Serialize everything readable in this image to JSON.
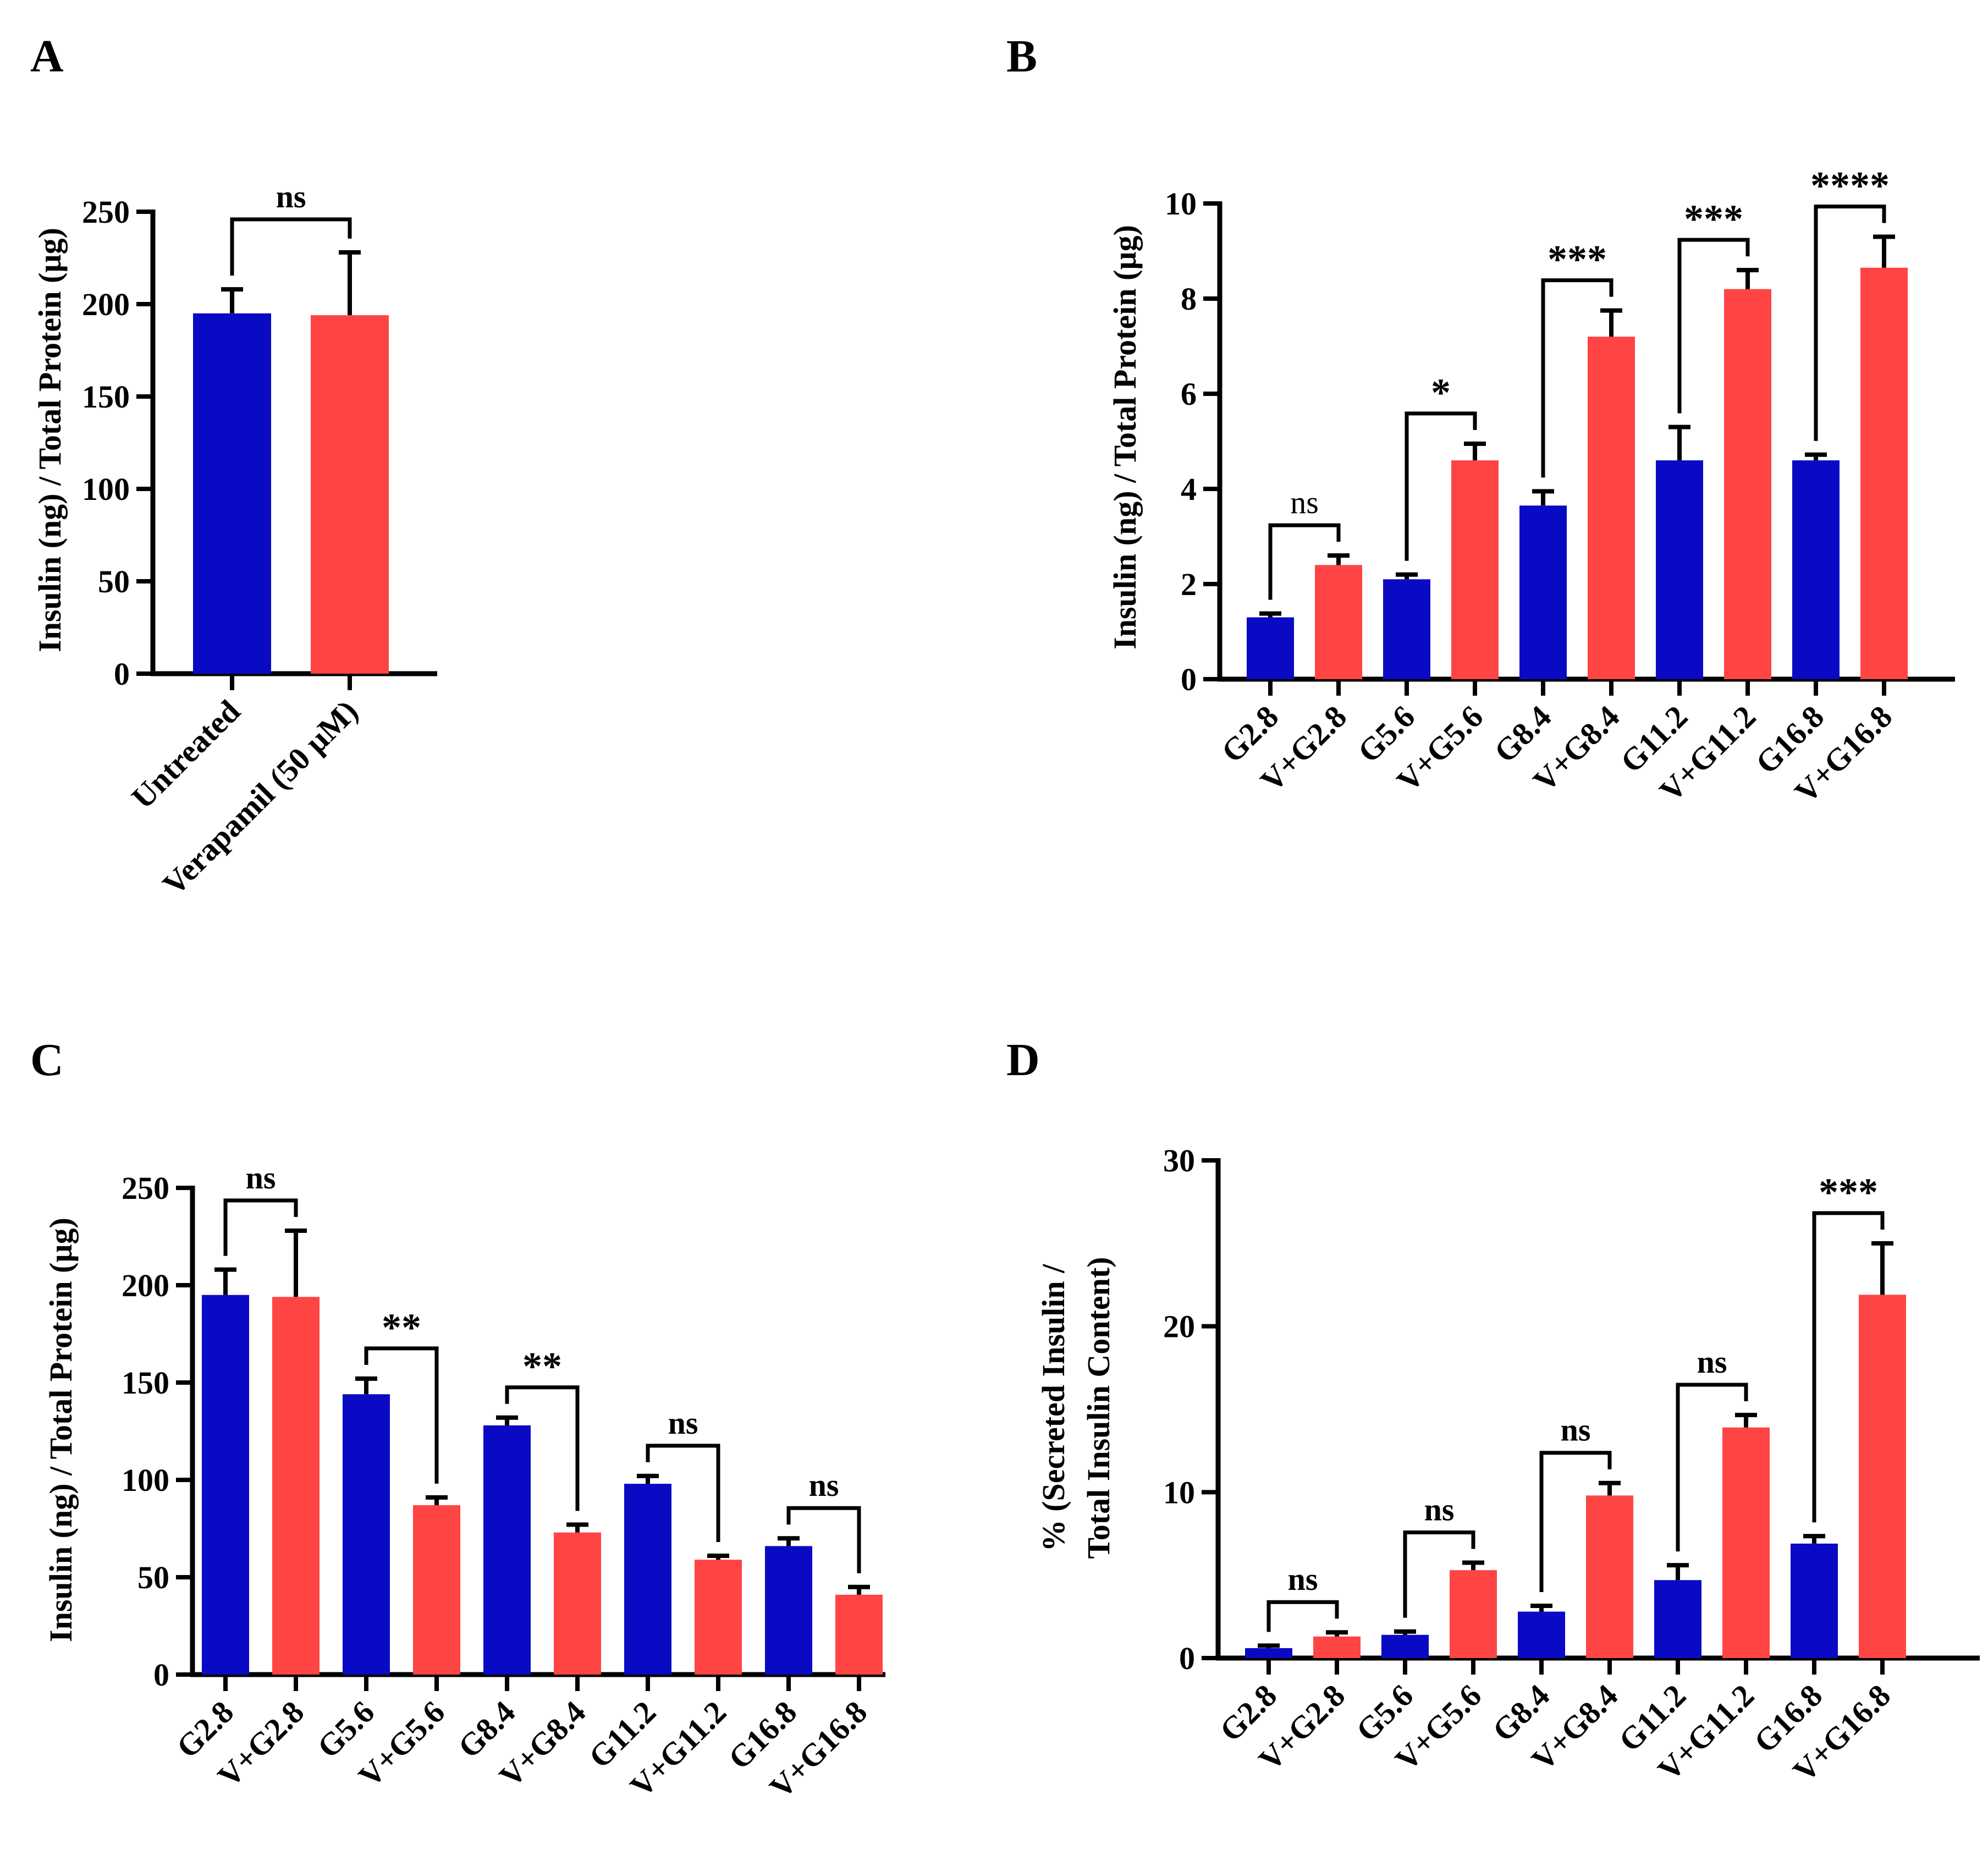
{
  "colors": {
    "blue": "#0a0ac4",
    "red": "#ff4444",
    "axis": "#000000"
  },
  "chart_data": [
    {
      "panel": "A",
      "type": "bar",
      "ylabel": "Insulin (ng) / Total Protein (µg)",
      "ylim": [
        0,
        250
      ],
      "yticks": [
        0,
        50,
        100,
        150,
        200,
        250
      ],
      "categories": [
        "Untreated",
        "Verapamil (50 µM)"
      ],
      "values": [
        195,
        194
      ],
      "errors": [
        13,
        34
      ],
      "bar_colors": [
        "blue",
        "red"
      ],
      "significance": [
        {
          "from": 0,
          "to": 1,
          "label": "ns"
        }
      ]
    },
    {
      "panel": "B",
      "type": "bar",
      "ylabel": "Insulin (ng) / Total Protein (µg)",
      "ylim": [
        0,
        10
      ],
      "yticks": [
        0,
        2,
        4,
        6,
        8,
        10
      ],
      "categories": [
        "G2.8",
        "V+G2.8",
        "G5.6",
        "V+G5.6",
        "G8.4",
        "V+G8.4",
        "G11.2",
        "V+G11.2",
        "G16.8",
        "V+G16.8"
      ],
      "values": [
        1.3,
        2.4,
        2.1,
        4.6,
        3.65,
        7.2,
        4.6,
        8.2,
        4.6,
        8.65
      ],
      "errors": [
        0.08,
        0.2,
        0.1,
        0.35,
        0.3,
        0.55,
        0.7,
        0.4,
        0.12,
        0.65
      ],
      "bar_colors": [
        "blue",
        "red",
        "blue",
        "red",
        "blue",
        "red",
        "blue",
        "red",
        "blue",
        "red"
      ],
      "significance": [
        {
          "from": 0,
          "to": 1,
          "label": "ns"
        },
        {
          "from": 2,
          "to": 3,
          "label": "*"
        },
        {
          "from": 4,
          "to": 5,
          "label": "***"
        },
        {
          "from": 6,
          "to": 7,
          "label": "***"
        },
        {
          "from": 8,
          "to": 9,
          "label": "****"
        }
      ]
    },
    {
      "panel": "C",
      "type": "bar",
      "ylabel": "Insulin (ng) / Total  Protein (µg)",
      "ylim": [
        0,
        250
      ],
      "yticks": [
        0,
        50,
        100,
        150,
        200,
        250
      ],
      "categories": [
        "G2.8",
        "V+G2.8",
        "G5.6",
        "V+G5.6",
        "G8.4",
        "V+G8.4",
        "G11.2",
        "V+G11.2",
        "G16.8",
        "V+G16.8"
      ],
      "values": [
        195,
        194,
        144,
        87,
        128,
        73,
        98,
        59,
        66,
        41
      ],
      "errors": [
        13,
        34,
        8,
        4,
        4,
        4,
        4,
        2,
        4,
        4
      ],
      "bar_colors": [
        "blue",
        "red",
        "blue",
        "red",
        "blue",
        "red",
        "blue",
        "red",
        "blue",
        "red"
      ],
      "significance": [
        {
          "from": 0,
          "to": 1,
          "label": "ns"
        },
        {
          "from": 2,
          "to": 3,
          "label": "**"
        },
        {
          "from": 4,
          "to": 5,
          "label": "**"
        },
        {
          "from": 6,
          "to": 7,
          "label": "ns"
        },
        {
          "from": 8,
          "to": 9,
          "label": "ns"
        }
      ]
    },
    {
      "panel": "D",
      "type": "bar",
      "ylabel": [
        "% (Secreted Insulin /",
        "Total Insulin Content)"
      ],
      "ylim": [
        0,
        30
      ],
      "yticks": [
        0,
        10,
        20,
        30
      ],
      "categories": [
        "G2.8",
        "V+G2.8",
        "G5.6",
        "V+G5.6",
        "G8.4",
        "V+G8.4",
        "G11.2",
        "V+G11.2",
        "G16.8",
        "V+G16.8"
      ],
      "values": [
        0.6,
        1.3,
        1.4,
        5.3,
        2.8,
        9.8,
        4.7,
        13.9,
        6.9,
        21.9
      ],
      "errors": [
        0.15,
        0.25,
        0.2,
        0.45,
        0.35,
        0.75,
        0.9,
        0.75,
        0.45,
        3.1
      ],
      "bar_colors": [
        "blue",
        "red",
        "blue",
        "red",
        "blue",
        "red",
        "blue",
        "red",
        "blue",
        "red"
      ],
      "significance": [
        {
          "from": 0,
          "to": 1,
          "label": "ns"
        },
        {
          "from": 2,
          "to": 3,
          "label": "ns"
        },
        {
          "from": 4,
          "to": 5,
          "label": "ns"
        },
        {
          "from": 6,
          "to": 7,
          "label": "ns"
        },
        {
          "from": 8,
          "to": 9,
          "label": "***"
        }
      ]
    }
  ]
}
